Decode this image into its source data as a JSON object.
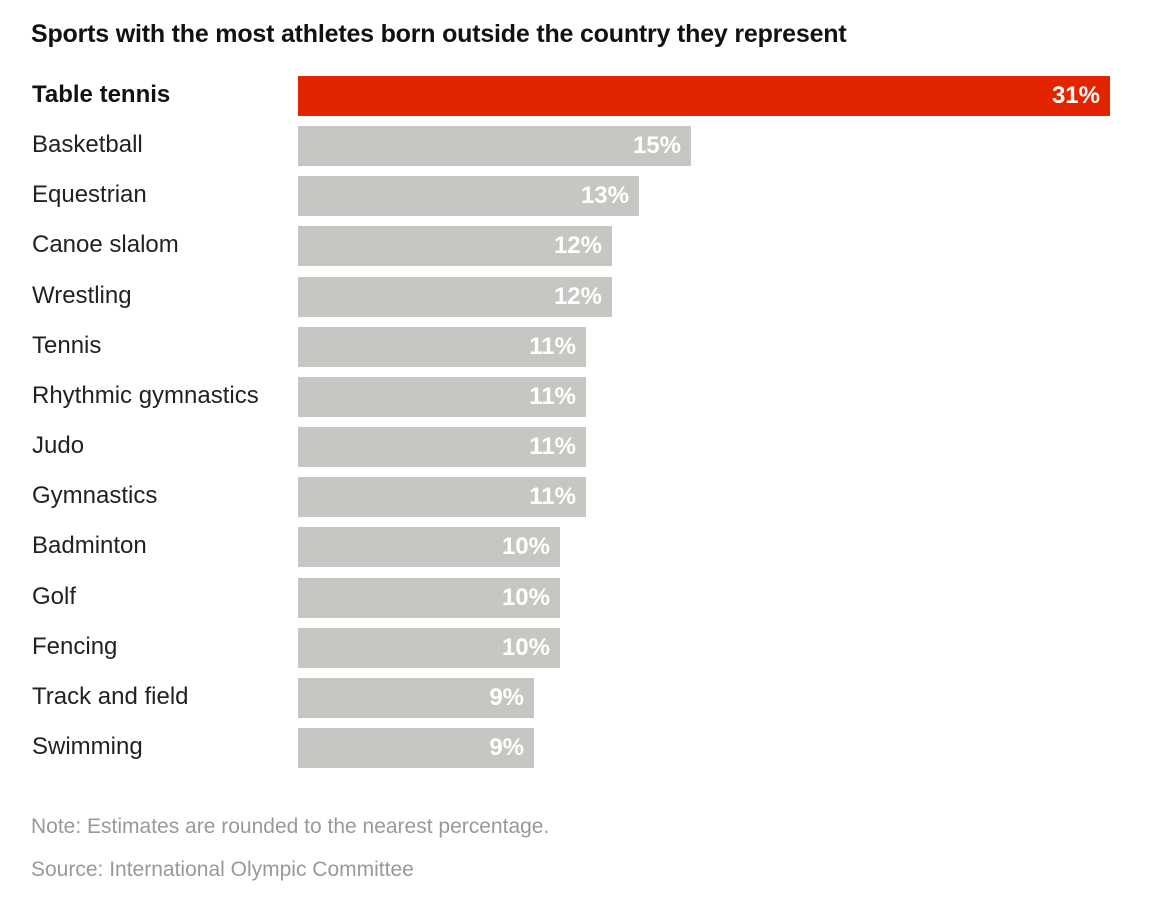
{
  "chart_data": {
    "type": "bar",
    "orientation": "horizontal",
    "title": "Sports with the most athletes born outside the country they represent",
    "categories": [
      "Table tennis",
      "Basketball",
      "Equestrian",
      "Canoe slalom",
      "Wrestling",
      "Tennis",
      "Rhythmic gymnastics",
      "Judo",
      "Gymnastics",
      "Badminton",
      "Golf",
      "Fencing",
      "Track and field",
      "Swimming"
    ],
    "values": [
      31,
      15,
      13,
      12,
      12,
      11,
      11,
      11,
      11,
      10,
      10,
      10,
      9,
      9
    ],
    "value_labels": [
      "31%",
      "15%",
      "13%",
      "12%",
      "12%",
      "11%",
      "11%",
      "11%",
      "11%",
      "10%",
      "10%",
      "10%",
      "9%",
      "9%"
    ],
    "highlighted_category": "Table tennis",
    "xlim": [
      0,
      31
    ],
    "unit": "%",
    "xlabel": "",
    "ylabel": ""
  },
  "colors": {
    "highlight": "#e32400",
    "bar": "#c8c6c2",
    "value_text": "#ffffff",
    "footnote": "#999999"
  },
  "footer": {
    "note": "Note: Estimates are rounded to the nearest percentage.",
    "source": "Source: International Olympic Committee"
  }
}
